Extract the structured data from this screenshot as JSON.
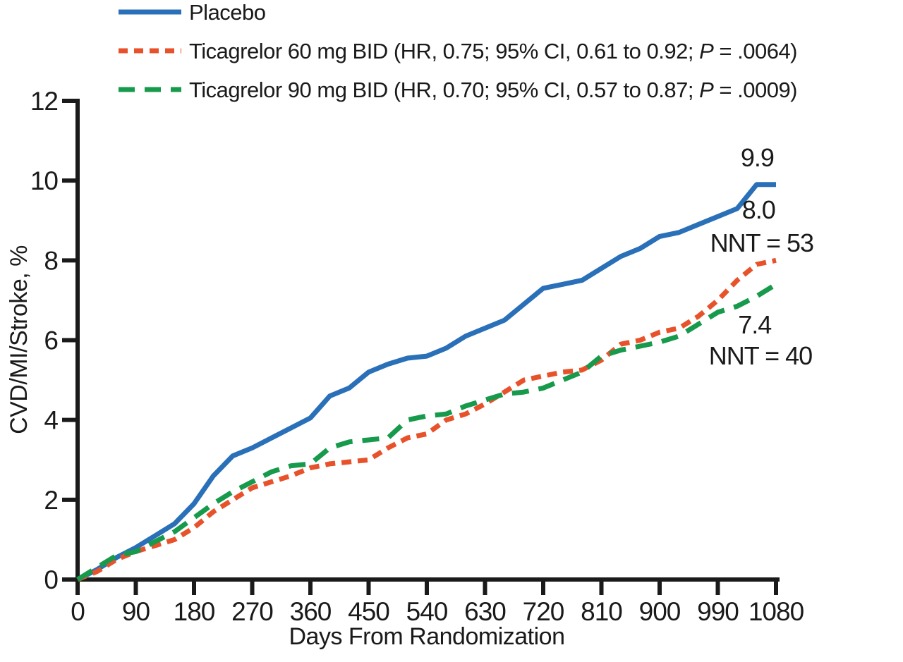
{
  "figure": {
    "x_axis_title": "Days From Randomization",
    "y_axis_title": "CVD/MI/Stroke, %",
    "background": "#ffffff",
    "axis_color": "#1a1a1a",
    "text_color": "#1a1a1a"
  },
  "legend": {
    "items": [
      {
        "name": "Placebo",
        "color": "#2A70B8",
        "dash": "solid",
        "prefix": "Placebo",
        "p": "",
        "suffix": ""
      },
      {
        "name": "Ticagrelor 60 mg BID",
        "color": "#E8522B",
        "dash": "short",
        "prefix": "Ticagrelor 60 mg BID (HR, 0.75; 95% CI, 0.61 to 0.92; ",
        "p": "P",
        "suffix": " = .0064)"
      },
      {
        "name": "Ticagrelor 90 mg BID",
        "color": "#179A4B",
        "dash": "long",
        "prefix": "Ticagrelor 90 mg BID (HR, 0.70; 95% CI, 0.57 to 0.87; ",
        "p": "P",
        "suffix": " = .0009)"
      }
    ]
  },
  "chart_data": {
    "type": "line",
    "title": "",
    "xlabel": "Days From Randomization",
    "ylabel": "CVD/MI/Stroke, %",
    "xlim": [
      0,
      1080
    ],
    "ylim": [
      0,
      12
    ],
    "xticks": [
      0,
      90,
      180,
      270,
      360,
      450,
      540,
      630,
      720,
      810,
      900,
      990,
      1080
    ],
    "yticks": [
      0,
      2,
      4,
      6,
      8,
      10,
      12
    ],
    "grid": false,
    "legend_position": "top-left",
    "x_days": [
      0,
      30,
      60,
      90,
      120,
      150,
      180,
      210,
      240,
      270,
      300,
      330,
      360,
      390,
      420,
      450,
      480,
      510,
      540,
      570,
      600,
      630,
      660,
      690,
      720,
      750,
      780,
      810,
      840,
      870,
      900,
      930,
      960,
      990,
      1020,
      1050,
      1080
    ],
    "series": [
      {
        "name": "Placebo",
        "color": "#2A70B8",
        "style": "solid",
        "final_value": 9.9,
        "values": [
          0,
          0.25,
          0.55,
          0.8,
          1.1,
          1.4,
          1.9,
          2.6,
          3.1,
          3.3,
          3.55,
          3.8,
          4.05,
          4.6,
          4.8,
          5.2,
          5.4,
          5.55,
          5.6,
          5.8,
          6.1,
          6.3,
          6.5,
          6.9,
          7.3,
          7.4,
          7.5,
          7.8,
          8.1,
          8.3,
          8.6,
          8.7,
          8.9,
          9.1,
          9.3,
          9.9,
          9.9
        ]
      },
      {
        "name": "Ticagrelor 60 mg BID",
        "hr": "0.75",
        "ci_95": "0.61 to 0.92",
        "p_value": ".0064",
        "color": "#E8522B",
        "style": "dashed-short",
        "final_value": 8.0,
        "nnt": "NNT = 53",
        "values": [
          0,
          0.2,
          0.5,
          0.7,
          0.85,
          1.0,
          1.3,
          1.7,
          2.0,
          2.3,
          2.45,
          2.6,
          2.8,
          2.9,
          2.95,
          3.0,
          3.3,
          3.55,
          3.65,
          4.0,
          4.15,
          4.4,
          4.7,
          5.0,
          5.1,
          5.2,
          5.25,
          5.5,
          5.9,
          6.0,
          6.2,
          6.3,
          6.6,
          7.0,
          7.5,
          7.9,
          8.0
        ]
      },
      {
        "name": "Ticagrelor 90 mg BID",
        "hr": "0.70",
        "ci_95": "0.57 to 0.87",
        "p_value": ".0009",
        "color": "#179A4B",
        "style": "dashed-long",
        "final_value": 7.4,
        "nnt": "NNT = 40",
        "values": [
          0,
          0.3,
          0.6,
          0.7,
          0.95,
          1.2,
          1.55,
          1.9,
          2.2,
          2.45,
          2.7,
          2.85,
          2.9,
          3.3,
          3.45,
          3.5,
          3.55,
          4.0,
          4.1,
          4.15,
          4.35,
          4.5,
          4.65,
          4.7,
          4.8,
          5.0,
          5.2,
          5.6,
          5.75,
          5.85,
          5.95,
          6.1,
          6.4,
          6.7,
          6.85,
          7.1,
          7.4
        ]
      }
    ],
    "annotations": [
      {
        "text": "9.9",
        "day": 1051,
        "pct": 10.59
      },
      {
        "text": "8.0",
        "day": 1053,
        "pct": 9.28
      },
      {
        "text": "NNT = 53",
        "day": 1058,
        "pct": 8.45
      },
      {
        "text": "7.4",
        "day": 1047,
        "pct": 6.4
      },
      {
        "text": "NNT = 40",
        "day": 1056,
        "pct": 5.62
      }
    ]
  }
}
